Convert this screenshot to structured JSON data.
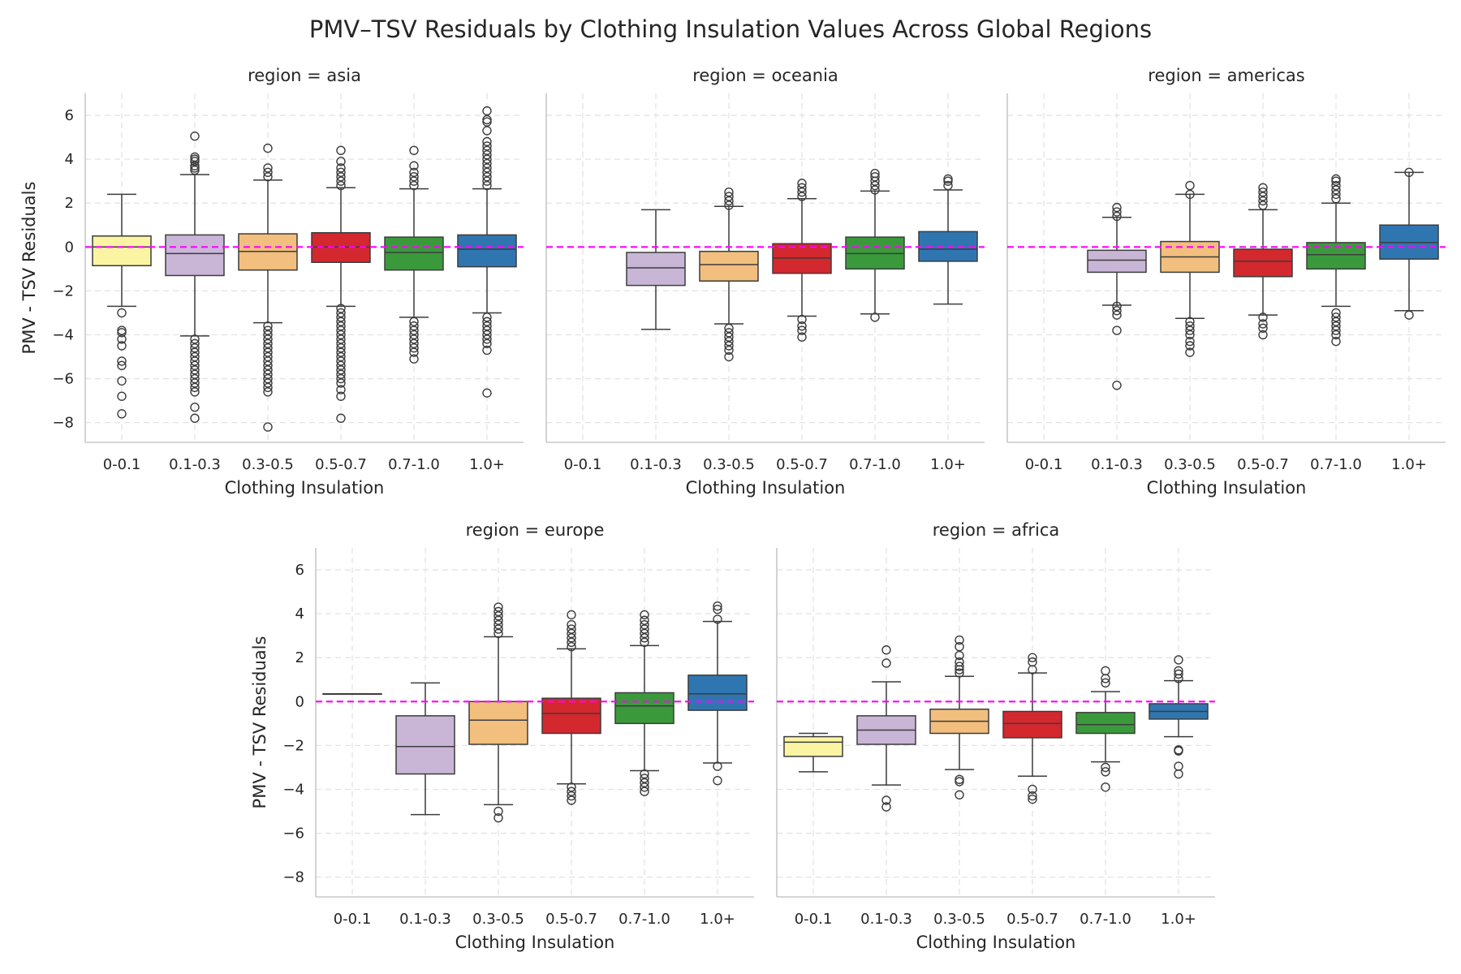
{
  "chart_data": {
    "type": "box",
    "title": "PMV–TSV Residuals by Clothing Insulation Values Across Global Regions",
    "xlabel": "Clothing Insulation",
    "ylabel": "PMV - TSV Residuals",
    "categories": [
      "0-0.1",
      "0.1-0.3",
      "0.3-0.5",
      "0.5-0.7",
      "0.7-1.0",
      "1.0+"
    ],
    "yticks": [
      6,
      4,
      2,
      0,
      -2,
      -4,
      -6,
      -8
    ],
    "ylim": [
      -8.9,
      7.0
    ],
    "reference_line": 0,
    "grid": true,
    "colors": {
      "0-0.1": "#fbf5a3",
      "0.1-0.3": "#c9b6d7",
      "0.3-0.5": "#f2bf7e",
      "0.5-0.7": "#d3282e",
      "0.7-1.0": "#3a9a3b",
      "1.0+": "#2f76b1",
      "reference": "#ff00ff"
    },
    "panels": [
      {
        "title": "region = asia",
        "boxes": [
          {
            "cat": "0-0.1",
            "whislo": -2.7,
            "q1": -0.85,
            "med": 0.0,
            "q3": 0.5,
            "whishi": 2.4,
            "fliers": [
              -3.0,
              -3.8,
              -3.9,
              -4.2,
              -4.5,
              -5.2,
              -5.4,
              -6.1,
              -6.8,
              -7.6
            ]
          },
          {
            "cat": "0.1-0.3",
            "whislo": -4.05,
            "q1": -1.3,
            "med": -0.3,
            "q3": 0.55,
            "whishi": 3.3,
            "fliers": [
              3.5,
              3.6,
              3.7,
              3.9,
              4.0,
              4.1,
              5.05,
              -4.2,
              -4.4,
              -4.6,
              -4.8,
              -5.0,
              -5.2,
              -5.4,
              -5.6,
              -5.8,
              -6.0,
              -6.2,
              -6.4,
              -6.6,
              -7.3,
              -7.8
            ]
          },
          {
            "cat": "0.3-0.5",
            "whislo": -3.45,
            "q1": -1.05,
            "med": -0.2,
            "q3": 0.6,
            "whishi": 3.05,
            "fliers": [
              3.2,
              3.4,
              3.6,
              4.5,
              -3.6,
              -3.8,
              -4.0,
              -4.2,
              -4.4,
              -4.6,
              -4.8,
              -5.0,
              -5.2,
              -5.4,
              -5.6,
              -5.8,
              -6.0,
              -6.2,
              -6.4,
              -6.6,
              -8.2
            ]
          },
          {
            "cat": "0.5-0.7",
            "whislo": -2.7,
            "q1": -0.7,
            "med": 0.0,
            "q3": 0.65,
            "whishi": 2.7,
            "fliers": [
              2.8,
              3.0,
              3.2,
              3.4,
              3.6,
              3.9,
              4.4,
              -2.8,
              -3.0,
              -3.2,
              -3.4,
              -3.6,
              -3.8,
              -4.0,
              -4.2,
              -4.4,
              -4.6,
              -4.8,
              -5.0,
              -5.2,
              -5.4,
              -5.6,
              -5.8,
              -6.0,
              -6.2,
              -6.5,
              -6.8,
              -7.8
            ]
          },
          {
            "cat": "0.7-1.0",
            "whislo": -3.2,
            "q1": -1.05,
            "med": -0.25,
            "q3": 0.45,
            "whishi": 2.65,
            "fliers": [
              2.8,
              3.0,
              3.2,
              3.4,
              3.7,
              4.4,
              -3.4,
              -3.6,
              -3.8,
              -4.0,
              -4.2,
              -4.4,
              -4.6,
              -4.8,
              -5.1
            ]
          },
          {
            "cat": "1.0+",
            "whislo": -3.0,
            "q1": -0.9,
            "med": -0.1,
            "q3": 0.55,
            "whishi": 2.65,
            "fliers": [
              2.8,
              3.0,
              3.2,
              3.4,
              3.6,
              3.8,
              4.0,
              4.2,
              4.4,
              4.6,
              4.8,
              5.3,
              5.7,
              5.8,
              6.2,
              -3.2,
              -3.4,
              -3.6,
              -3.8,
              -4.0,
              -4.2,
              -4.4,
              -4.7,
              -6.65
            ]
          }
        ]
      },
      {
        "title": "region = oceania",
        "boxes": [
          {
            "cat": "0.1-0.3",
            "whislo": -3.75,
            "q1": -1.75,
            "med": -0.95,
            "q3": -0.25,
            "whishi": 1.7,
            "fliers": []
          },
          {
            "cat": "0.3-0.5",
            "whislo": -3.5,
            "q1": -1.55,
            "med": -0.8,
            "q3": -0.2,
            "whishi": 1.85,
            "fliers": [
              1.9,
              2.1,
              2.3,
              2.5,
              -3.7,
              -3.9,
              -4.1,
              -4.3,
              -4.5,
              -4.7,
              -5.0
            ]
          },
          {
            "cat": "0.5-0.7",
            "whislo": -3.15,
            "q1": -1.2,
            "med": -0.5,
            "q3": 0.15,
            "whishi": 2.2,
            "fliers": [
              2.3,
              2.5,
              2.7,
              2.9,
              -3.3,
              -3.6,
              -3.8,
              -4.1
            ]
          },
          {
            "cat": "0.7-1.0",
            "whislo": -3.05,
            "q1": -1.0,
            "med": -0.3,
            "q3": 0.45,
            "whishi": 2.55,
            "fliers": [
              2.6,
              2.8,
              3.0,
              3.2,
              3.35,
              -3.2
            ]
          },
          {
            "cat": "1.0+",
            "whislo": -2.6,
            "q1": -0.65,
            "med": -0.1,
            "q3": 0.7,
            "whishi": 2.6,
            "fliers": [
              2.8,
              3.0,
              3.1
            ]
          }
        ]
      },
      {
        "title": "region = americas",
        "boxes": [
          {
            "cat": "0.1-0.3",
            "whislo": -2.65,
            "q1": -1.15,
            "med": -0.6,
            "q3": -0.15,
            "whishi": 1.35,
            "fliers": [
              1.4,
              1.6,
              1.8,
              -2.7,
              -2.9,
              -3.1,
              -3.8,
              -6.3
            ]
          },
          {
            "cat": "0.3-0.5",
            "whislo": -3.25,
            "q1": -1.15,
            "med": -0.45,
            "q3": 0.25,
            "whishi": 2.4,
            "fliers": [
              2.4,
              2.8,
              -3.4,
              -3.6,
              -3.8,
              -4.0,
              -4.3,
              -4.5,
              -4.8
            ]
          },
          {
            "cat": "0.5-0.7",
            "whislo": -3.1,
            "q1": -1.35,
            "med": -0.65,
            "q3": -0.1,
            "whishi": 1.7,
            "fliers": [
              1.9,
              2.1,
              2.3,
              2.5,
              2.7,
              -3.2,
              -3.5,
              -3.7,
              -4.0
            ]
          },
          {
            "cat": "0.7-1.0",
            "whislo": -2.7,
            "q1": -1.0,
            "med": -0.35,
            "q3": 0.2,
            "whishi": 2.0,
            "fliers": [
              2.2,
              2.4,
              2.6,
              2.8,
              3.0,
              3.1,
              -3.0,
              -3.2,
              -3.4,
              -3.6,
              -3.8,
              -4.0,
              -4.3
            ]
          },
          {
            "cat": "1.0+",
            "whislo": -2.9,
            "q1": -0.55,
            "med": 0.2,
            "q3": 1.0,
            "whishi": 3.4,
            "fliers": [
              3.4,
              -3.1
            ]
          }
        ]
      },
      {
        "title": "region = europe",
        "boxes": [
          {
            "cat": "0-0.1",
            "whislo": 0.35,
            "q1": 0.35,
            "med": 0.35,
            "q3": 0.35,
            "whishi": 0.35,
            "fliers": []
          },
          {
            "cat": "0.1-0.3",
            "whislo": -5.15,
            "q1": -3.3,
            "med": -2.05,
            "q3": -0.65,
            "whishi": 0.85,
            "fliers": []
          },
          {
            "cat": "0.3-0.5",
            "whislo": -4.7,
            "q1": -1.95,
            "med": -0.85,
            "q3": 0.0,
            "whishi": 2.95,
            "fliers": [
              3.1,
              3.3,
              3.5,
              3.7,
              3.9,
              4.1,
              4.3,
              -5.0,
              -5.3
            ]
          },
          {
            "cat": "0.5-0.7",
            "whislo": -3.75,
            "q1": -1.45,
            "med": -0.55,
            "q3": 0.15,
            "whishi": 2.4,
            "fliers": [
              2.5,
              2.7,
              2.9,
              3.1,
              3.3,
              3.5,
              3.95,
              -3.9,
              -4.1,
              -4.3,
              -4.5
            ]
          },
          {
            "cat": "0.7-1.0",
            "whislo": -3.15,
            "q1": -1.0,
            "med": -0.2,
            "q3": 0.4,
            "whishi": 2.55,
            "fliers": [
              2.7,
              2.9,
              3.1,
              3.3,
              3.5,
              3.7,
              3.95,
              -3.3,
              -3.5,
              -3.7,
              -3.9,
              -4.1
            ]
          },
          {
            "cat": "1.0+",
            "whislo": -2.8,
            "q1": -0.4,
            "med": 0.35,
            "q3": 1.2,
            "whishi": 3.65,
            "fliers": [
              3.75,
              4.2,
              4.35,
              -2.95,
              -3.6
            ]
          }
        ]
      },
      {
        "title": "region = africa",
        "boxes": [
          {
            "cat": "0-0.1",
            "whislo": -3.2,
            "q1": -2.5,
            "med": -1.85,
            "q3": -1.6,
            "whishi": -1.45,
            "fliers": []
          },
          {
            "cat": "0.1-0.3",
            "whislo": -3.8,
            "q1": -1.95,
            "med": -1.3,
            "q3": -0.65,
            "whishi": 0.9,
            "fliers": [
              1.75,
              2.35,
              -4.5,
              -4.8
            ]
          },
          {
            "cat": "0.3-0.5",
            "whislo": -3.1,
            "q1": -1.45,
            "med": -0.9,
            "q3": -0.35,
            "whishi": 1.15,
            "fliers": [
              1.3,
              1.45,
              1.6,
              1.8,
              2.1,
              2.5,
              2.8,
              -3.55,
              -3.65,
              -4.25
            ]
          },
          {
            "cat": "0.5-0.7",
            "whislo": -3.4,
            "q1": -1.65,
            "med": -1.0,
            "q3": -0.45,
            "whishi": 1.3,
            "fliers": [
              1.45,
              1.8,
              2.0,
              -4.0,
              -4.3,
              -4.45
            ]
          },
          {
            "cat": "0.7-1.0",
            "whislo": -2.75,
            "q1": -1.45,
            "med": -1.05,
            "q3": -0.5,
            "whishi": 0.45,
            "fliers": [
              0.85,
              1.05,
              1.4,
              -3.0,
              -3.2,
              -3.9
            ]
          },
          {
            "cat": "1.0+",
            "whislo": -1.6,
            "q1": -0.8,
            "med": -0.45,
            "q3": -0.1,
            "whishi": 0.95,
            "fliers": [
              1.05,
              1.25,
              1.4,
              1.9,
              -2.2,
              -2.25,
              -2.95,
              -3.3
            ]
          }
        ]
      }
    ]
  }
}
